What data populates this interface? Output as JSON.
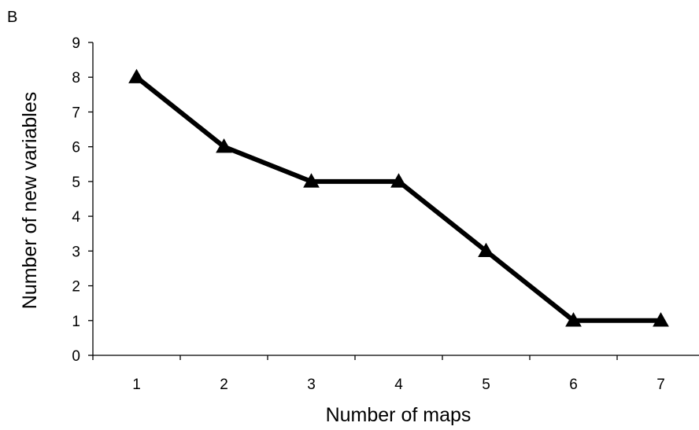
{
  "panel_label": "B",
  "colors": {
    "series": "#000000",
    "axis": "#000000",
    "background": "#ffffff"
  },
  "chart_data": {
    "type": "line",
    "title": "",
    "xlabel": "Number of maps",
    "ylabel": "Number  of new variables",
    "x": [
      1,
      2,
      3,
      4,
      5,
      6,
      7
    ],
    "x_tick_labels": [
      "1",
      "2",
      "3",
      "4",
      "5",
      "6",
      "7"
    ],
    "y_tick_labels": [
      "0",
      "1",
      "2",
      "3",
      "4",
      "5",
      "6",
      "7",
      "8",
      "9"
    ],
    "ylim": [
      0,
      9
    ],
    "xlim": [
      0.5,
      7.5
    ],
    "grid": false,
    "legend": "none",
    "marker": "triangle",
    "series": [
      {
        "values": [
          8,
          6,
          5,
          5,
          3,
          1,
          1
        ]
      }
    ]
  }
}
